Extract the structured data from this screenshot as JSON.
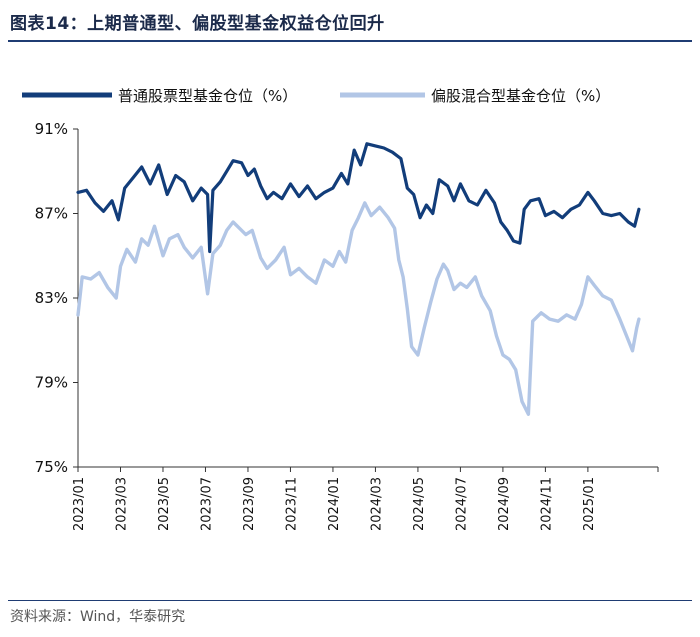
{
  "figure": {
    "title": "图表14：上期普通型、偏股型基金权益仓位回升",
    "source": "资料来源：Wind，华泰研究"
  },
  "colors": {
    "series1": "#123d7a",
    "series2": "#b2c6e6",
    "axis": "#333333",
    "rule": "#1f3c73"
  },
  "chart_data": {
    "type": "line",
    "title": "",
    "xlabel": "",
    "ylabel": "",
    "ylim": [
      75,
      91
    ],
    "yticks": [
      "75%",
      "79%",
      "83%",
      "87%",
      "91%"
    ],
    "ytick_values": [
      75,
      79,
      83,
      87,
      91
    ],
    "x_range_months": [
      0,
      27.3
    ],
    "xticks": [
      "2023/01",
      "2023/03",
      "2023/05",
      "2023/07",
      "2023/09",
      "2023/11",
      "2024/01",
      "2024/03",
      "2024/05",
      "2024/07",
      "2024/09",
      "2024/11",
      "2025/01"
    ],
    "xtick_months": [
      0,
      2,
      4,
      6,
      8,
      10,
      12,
      14,
      16,
      18,
      20,
      22,
      24
    ],
    "legend_position": "top",
    "series": [
      {
        "name": "普通股票型基金仓位（%）",
        "color": "#123d7a",
        "points": [
          [
            0.0,
            88.0
          ],
          [
            0.4,
            88.1
          ],
          [
            0.8,
            87.5
          ],
          [
            1.2,
            87.1
          ],
          [
            1.6,
            87.6
          ],
          [
            1.9,
            86.7
          ],
          [
            2.2,
            88.2
          ],
          [
            2.6,
            88.7
          ],
          [
            3.0,
            89.2
          ],
          [
            3.4,
            88.4
          ],
          [
            3.8,
            89.3
          ],
          [
            4.2,
            87.9
          ],
          [
            4.6,
            88.8
          ],
          [
            5.0,
            88.5
          ],
          [
            5.4,
            87.6
          ],
          [
            5.8,
            88.2
          ],
          [
            6.1,
            87.9
          ],
          [
            6.2,
            85.2
          ],
          [
            6.35,
            88.1
          ],
          [
            6.7,
            88.5
          ],
          [
            7.0,
            89.0
          ],
          [
            7.3,
            89.5
          ],
          [
            7.7,
            89.4
          ],
          [
            8.0,
            88.8
          ],
          [
            8.3,
            89.1
          ],
          [
            8.6,
            88.3
          ],
          [
            8.9,
            87.7
          ],
          [
            9.2,
            88.0
          ],
          [
            9.6,
            87.7
          ],
          [
            10.0,
            88.4
          ],
          [
            10.4,
            87.8
          ],
          [
            10.8,
            88.3
          ],
          [
            11.2,
            87.7
          ],
          [
            11.6,
            88.0
          ],
          [
            12.0,
            88.2
          ],
          [
            12.4,
            88.9
          ],
          [
            12.7,
            88.4
          ],
          [
            13.0,
            90.0
          ],
          [
            13.3,
            89.3
          ],
          [
            13.6,
            90.3
          ],
          [
            14.0,
            90.2
          ],
          [
            14.4,
            90.1
          ],
          [
            14.8,
            89.9
          ],
          [
            15.2,
            89.6
          ],
          [
            15.5,
            88.2
          ],
          [
            15.8,
            87.9
          ],
          [
            16.1,
            86.8
          ],
          [
            16.4,
            87.4
          ],
          [
            16.7,
            87.0
          ],
          [
            17.0,
            88.6
          ],
          [
            17.4,
            88.3
          ],
          [
            17.7,
            87.6
          ],
          [
            18.0,
            88.4
          ],
          [
            18.4,
            87.6
          ],
          [
            18.8,
            87.4
          ],
          [
            19.2,
            88.1
          ],
          [
            19.6,
            87.5
          ],
          [
            19.9,
            86.6
          ],
          [
            20.2,
            86.2
          ],
          [
            20.5,
            85.7
          ],
          [
            20.8,
            85.6
          ],
          [
            21.0,
            87.2
          ],
          [
            21.3,
            87.6
          ],
          [
            21.7,
            87.7
          ],
          [
            22.0,
            86.9
          ],
          [
            22.4,
            87.1
          ],
          [
            22.8,
            86.8
          ],
          [
            23.2,
            87.2
          ],
          [
            23.6,
            87.4
          ],
          [
            24.0,
            88.0
          ],
          [
            24.3,
            87.6
          ],
          [
            24.7,
            87.0
          ],
          [
            25.1,
            86.9
          ],
          [
            25.5,
            87.0
          ],
          [
            25.9,
            86.6
          ],
          [
            26.2,
            86.4
          ],
          [
            26.4,
            87.2
          ]
        ]
      },
      {
        "name": "偏股混合型基金仓位（%）",
        "color": "#b2c6e6",
        "points": [
          [
            0.0,
            82.2
          ],
          [
            0.2,
            84.0
          ],
          [
            0.6,
            83.9
          ],
          [
            1.0,
            84.2
          ],
          [
            1.4,
            83.5
          ],
          [
            1.8,
            83.0
          ],
          [
            2.0,
            84.5
          ],
          [
            2.3,
            85.3
          ],
          [
            2.7,
            84.7
          ],
          [
            3.0,
            85.8
          ],
          [
            3.3,
            85.5
          ],
          [
            3.6,
            86.4
          ],
          [
            4.0,
            85.0
          ],
          [
            4.3,
            85.8
          ],
          [
            4.7,
            86.0
          ],
          [
            5.0,
            85.4
          ],
          [
            5.4,
            84.9
          ],
          [
            5.8,
            85.4
          ],
          [
            6.1,
            83.2
          ],
          [
            6.35,
            85.1
          ],
          [
            6.7,
            85.5
          ],
          [
            7.0,
            86.2
          ],
          [
            7.3,
            86.6
          ],
          [
            7.6,
            86.3
          ],
          [
            7.9,
            86.0
          ],
          [
            8.2,
            86.2
          ],
          [
            8.6,
            84.9
          ],
          [
            8.9,
            84.4
          ],
          [
            9.3,
            84.8
          ],
          [
            9.7,
            85.4
          ],
          [
            10.0,
            84.1
          ],
          [
            10.4,
            84.4
          ],
          [
            10.8,
            84.0
          ],
          [
            11.2,
            83.7
          ],
          [
            11.6,
            84.8
          ],
          [
            12.0,
            84.5
          ],
          [
            12.3,
            85.2
          ],
          [
            12.6,
            84.7
          ],
          [
            12.9,
            86.2
          ],
          [
            13.2,
            86.8
          ],
          [
            13.5,
            87.5
          ],
          [
            13.8,
            86.9
          ],
          [
            14.2,
            87.3
          ],
          [
            14.6,
            86.8
          ],
          [
            14.9,
            86.3
          ],
          [
            15.1,
            84.8
          ],
          [
            15.3,
            84.0
          ],
          [
            15.5,
            82.5
          ],
          [
            15.7,
            80.7
          ],
          [
            16.0,
            80.3
          ],
          [
            16.3,
            81.6
          ],
          [
            16.6,
            82.8
          ],
          [
            16.9,
            83.9
          ],
          [
            17.2,
            84.6
          ],
          [
            17.4,
            84.3
          ],
          [
            17.7,
            83.4
          ],
          [
            18.0,
            83.7
          ],
          [
            18.3,
            83.5
          ],
          [
            18.7,
            84.0
          ],
          [
            19.0,
            83.1
          ],
          [
            19.4,
            82.4
          ],
          [
            19.7,
            81.2
          ],
          [
            20.0,
            80.3
          ],
          [
            20.3,
            80.1
          ],
          [
            20.6,
            79.6
          ],
          [
            20.9,
            78.1
          ],
          [
            21.2,
            77.5
          ],
          [
            21.4,
            81.9
          ],
          [
            21.8,
            82.3
          ],
          [
            22.2,
            82.0
          ],
          [
            22.6,
            81.9
          ],
          [
            23.0,
            82.2
          ],
          [
            23.4,
            82.0
          ],
          [
            23.7,
            82.7
          ],
          [
            24.0,
            84.0
          ],
          [
            24.3,
            83.6
          ],
          [
            24.7,
            83.1
          ],
          [
            25.1,
            82.9
          ],
          [
            25.5,
            82.0
          ],
          [
            25.9,
            81.0
          ],
          [
            26.1,
            80.5
          ],
          [
            26.3,
            81.6
          ],
          [
            26.4,
            82.0
          ]
        ]
      }
    ]
  }
}
